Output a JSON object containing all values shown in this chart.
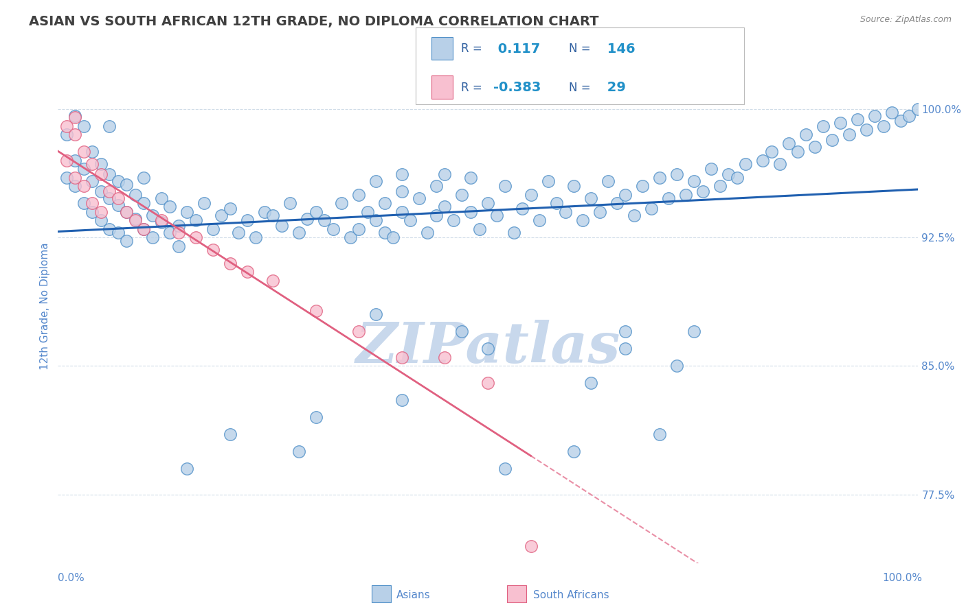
{
  "title": "ASIAN VS SOUTH AFRICAN 12TH GRADE, NO DIPLOMA CORRELATION CHART",
  "source": "Source: ZipAtlas.com",
  "ylabel": "12th Grade, No Diploma",
  "yticks": [
    0.775,
    0.85,
    0.925,
    1.0
  ],
  "ytick_labels": [
    "77.5%",
    "85.0%",
    "92.5%",
    "100.0%"
  ],
  "xmin": 0.0,
  "xmax": 1.0,
  "ymin": 0.735,
  "ymax": 1.035,
  "blue_R": 0.117,
  "blue_N": 146,
  "pink_R": -0.383,
  "pink_N": 29,
  "blue_color": "#b8d0e8",
  "blue_edge_color": "#5090c8",
  "pink_color": "#f8c0d0",
  "pink_edge_color": "#e06080",
  "pink_line_color": "#e06080",
  "blue_line_color": "#2060b0",
  "watermark": "ZIPatlas",
  "watermark_color": "#c8d8ec",
  "background_color": "#ffffff",
  "grid_color": "#d0dce8",
  "title_color": "#404040",
  "axis_label_color": "#5588cc",
  "legend_label_color": "#3060a0",
  "legend_value_color": "#2090c8",
  "blue_scatter_x": [
    0.01,
    0.01,
    0.02,
    0.02,
    0.02,
    0.03,
    0.03,
    0.03,
    0.04,
    0.04,
    0.04,
    0.05,
    0.05,
    0.05,
    0.06,
    0.06,
    0.06,
    0.06,
    0.07,
    0.07,
    0.07,
    0.08,
    0.08,
    0.08,
    0.09,
    0.09,
    0.1,
    0.1,
    0.1,
    0.11,
    0.11,
    0.12,
    0.12,
    0.13,
    0.13,
    0.14,
    0.14,
    0.15,
    0.16,
    0.17,
    0.18,
    0.19,
    0.2,
    0.21,
    0.22,
    0.23,
    0.24,
    0.25,
    0.26,
    0.27,
    0.28,
    0.29,
    0.3,
    0.31,
    0.32,
    0.33,
    0.34,
    0.35,
    0.35,
    0.36,
    0.37,
    0.37,
    0.38,
    0.38,
    0.39,
    0.4,
    0.4,
    0.4,
    0.41,
    0.42,
    0.43,
    0.44,
    0.44,
    0.45,
    0.45,
    0.46,
    0.47,
    0.48,
    0.48,
    0.49,
    0.5,
    0.51,
    0.52,
    0.53,
    0.54,
    0.55,
    0.56,
    0.57,
    0.58,
    0.59,
    0.6,
    0.61,
    0.62,
    0.63,
    0.64,
    0.65,
    0.66,
    0.67,
    0.68,
    0.69,
    0.7,
    0.71,
    0.72,
    0.73,
    0.74,
    0.75,
    0.76,
    0.77,
    0.78,
    0.79,
    0.8,
    0.82,
    0.83,
    0.84,
    0.85,
    0.86,
    0.87,
    0.88,
    0.89,
    0.9,
    0.91,
    0.92,
    0.93,
    0.94,
    0.95,
    0.96,
    0.97,
    0.98,
    0.99,
    1.0,
    0.5,
    0.47,
    0.37,
    0.62,
    0.66,
    0.66,
    0.72,
    0.74,
    0.15,
    0.28,
    0.2,
    0.3,
    0.4,
    0.52,
    0.6,
    0.7
  ],
  "blue_scatter_y": [
    0.96,
    0.985,
    0.97,
    0.955,
    0.996,
    0.965,
    0.945,
    0.99,
    0.958,
    0.94,
    0.975,
    0.952,
    0.935,
    0.968,
    0.948,
    0.93,
    0.962,
    0.99,
    0.944,
    0.928,
    0.958,
    0.94,
    0.923,
    0.956,
    0.936,
    0.95,
    0.93,
    0.945,
    0.96,
    0.938,
    0.925,
    0.934,
    0.948,
    0.928,
    0.943,
    0.932,
    0.92,
    0.94,
    0.935,
    0.945,
    0.93,
    0.938,
    0.942,
    0.928,
    0.935,
    0.925,
    0.94,
    0.938,
    0.932,
    0.945,
    0.928,
    0.936,
    0.94,
    0.935,
    0.93,
    0.945,
    0.925,
    0.95,
    0.93,
    0.94,
    0.935,
    0.958,
    0.928,
    0.945,
    0.925,
    0.952,
    0.94,
    0.962,
    0.935,
    0.948,
    0.928,
    0.938,
    0.955,
    0.943,
    0.962,
    0.935,
    0.95,
    0.94,
    0.96,
    0.93,
    0.945,
    0.938,
    0.955,
    0.928,
    0.942,
    0.95,
    0.935,
    0.958,
    0.945,
    0.94,
    0.955,
    0.935,
    0.948,
    0.94,
    0.958,
    0.945,
    0.95,
    0.938,
    0.955,
    0.942,
    0.96,
    0.948,
    0.962,
    0.95,
    0.958,
    0.952,
    0.965,
    0.955,
    0.962,
    0.96,
    0.968,
    0.97,
    0.975,
    0.968,
    0.98,
    0.975,
    0.985,
    0.978,
    0.99,
    0.982,
    0.992,
    0.985,
    0.994,
    0.988,
    0.996,
    0.99,
    0.998,
    0.993,
    0.996,
    1.0,
    0.86,
    0.87,
    0.88,
    0.84,
    0.87,
    0.86,
    0.85,
    0.87,
    0.79,
    0.8,
    0.81,
    0.82,
    0.83,
    0.79,
    0.8,
    0.81
  ],
  "pink_scatter_x": [
    0.01,
    0.01,
    0.02,
    0.02,
    0.02,
    0.03,
    0.03,
    0.04,
    0.04,
    0.05,
    0.05,
    0.06,
    0.07,
    0.08,
    0.09,
    0.1,
    0.12,
    0.14,
    0.16,
    0.18,
    0.2,
    0.22,
    0.25,
    0.3,
    0.35,
    0.4,
    0.45,
    0.5,
    0.55
  ],
  "pink_scatter_y": [
    0.99,
    0.97,
    0.985,
    0.96,
    0.995,
    0.975,
    0.955,
    0.968,
    0.945,
    0.962,
    0.94,
    0.952,
    0.948,
    0.94,
    0.935,
    0.93,
    0.935,
    0.928,
    0.925,
    0.918,
    0.91,
    0.905,
    0.9,
    0.882,
    0.87,
    0.855,
    0.855,
    0.84,
    0.745
  ]
}
